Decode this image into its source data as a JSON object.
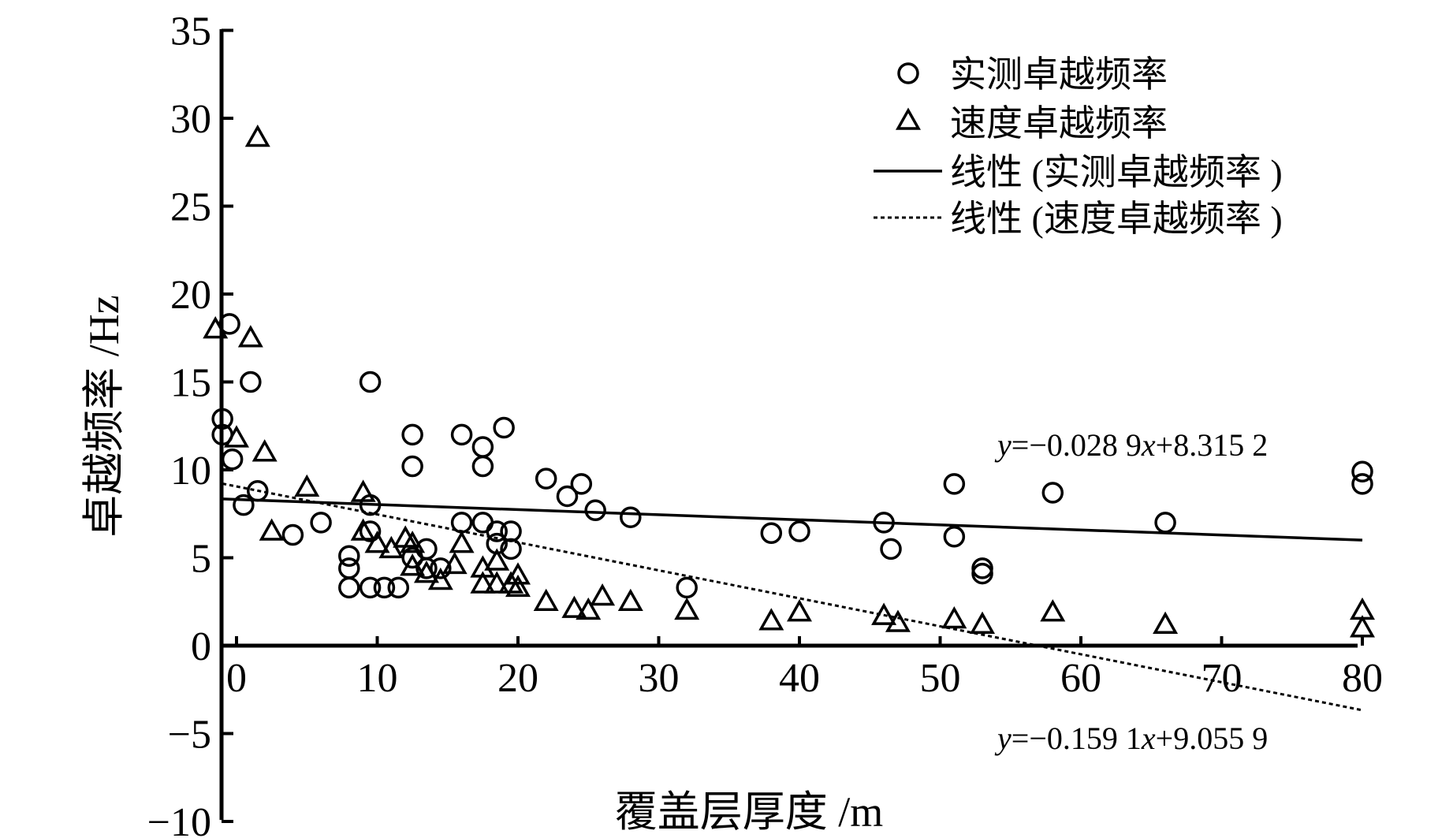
{
  "chart_data": {
    "type": "scatter",
    "title": "",
    "xlabel": "覆盖层厚度 /m",
    "ylabel": "卓越频率 /Hz",
    "xlim": [
      0,
      80
    ],
    "ylim": [
      -10,
      35
    ],
    "x_ticks": [
      "0",
      "10",
      "20",
      "30",
      "40",
      "50",
      "60",
      "70",
      "80"
    ],
    "y_ticks": [
      "−10",
      "−5",
      "0",
      "5",
      "10",
      "15",
      "20",
      "25",
      "30",
      "35"
    ],
    "legend_position": "top-right",
    "series": [
      {
        "name": "实测卓越频率",
        "marker": "circle",
        "points": [
          [
            -1,
            12.9
          ],
          [
            -1,
            12
          ],
          [
            -0.5,
            18.3
          ],
          [
            -0.3,
            10.6
          ],
          [
            0.5,
            8
          ],
          [
            1,
            15
          ],
          [
            1.5,
            8.8
          ],
          [
            4,
            6.3
          ],
          [
            6,
            7
          ],
          [
            8,
            5.1
          ],
          [
            8,
            4.4
          ],
          [
            8,
            3.3
          ],
          [
            9.5,
            15
          ],
          [
            9.5,
            8
          ],
          [
            9.5,
            6.5
          ],
          [
            9.5,
            3.3
          ],
          [
            10.5,
            3.3
          ],
          [
            11.5,
            3.3
          ],
          [
            12.5,
            12
          ],
          [
            12.5,
            10.2
          ],
          [
            12.5,
            5
          ],
          [
            13.5,
            5.5
          ],
          [
            13.5,
            4.4
          ],
          [
            14.5,
            4.4
          ],
          [
            16,
            12
          ],
          [
            16,
            7
          ],
          [
            17.5,
            11.3
          ],
          [
            17.5,
            10.2
          ],
          [
            17.5,
            7
          ],
          [
            18.5,
            6.5
          ],
          [
            18.5,
            5.8
          ],
          [
            19,
            12.4
          ],
          [
            19.5,
            6.5
          ],
          [
            19.5,
            5.5
          ],
          [
            22,
            9.5
          ],
          [
            23.5,
            8.5
          ],
          [
            24.5,
            9.2
          ],
          [
            25.5,
            7.7
          ],
          [
            28,
            7.3
          ],
          [
            32,
            3.3
          ],
          [
            38,
            6.4
          ],
          [
            40,
            6.5
          ],
          [
            46,
            7
          ],
          [
            46.5,
            5.5
          ],
          [
            51,
            9.2
          ],
          [
            51,
            6.2
          ],
          [
            53,
            4.1
          ],
          [
            53,
            4.4
          ],
          [
            58,
            8.7
          ],
          [
            66,
            7
          ],
          [
            80,
            9.9
          ],
          [
            80,
            9.2
          ]
        ]
      },
      {
        "name": "速度卓越频率",
        "marker": "triangle",
        "points": [
          [
            -1.5,
            18
          ],
          [
            0,
            11.8
          ],
          [
            1,
            17.5
          ],
          [
            1.5,
            28.9
          ],
          [
            2,
            11
          ],
          [
            2.5,
            6.5
          ],
          [
            5,
            9
          ],
          [
            9,
            8.7
          ],
          [
            9,
            6.5
          ],
          [
            10,
            5.8
          ],
          [
            11,
            5.5
          ],
          [
            12,
            6.1
          ],
          [
            12.5,
            5.8
          ],
          [
            12.5,
            4.5
          ],
          [
            13.5,
            4.1
          ],
          [
            14.5,
            3.7
          ],
          [
            15.5,
            4.6
          ],
          [
            16,
            5.8
          ],
          [
            17.5,
            4.4
          ],
          [
            17.5,
            3.5
          ],
          [
            18.5,
            3.5
          ],
          [
            18.5,
            4.8
          ],
          [
            19.5,
            3.5
          ],
          [
            20,
            3.3
          ],
          [
            20,
            4
          ],
          [
            22,
            2.5
          ],
          [
            24,
            2.1
          ],
          [
            25,
            2
          ],
          [
            26,
            2.8
          ],
          [
            28,
            2.5
          ],
          [
            32,
            2
          ],
          [
            38,
            1.4
          ],
          [
            40,
            1.9
          ],
          [
            46,
            1.7
          ],
          [
            47,
            1.3
          ],
          [
            51,
            1.5
          ],
          [
            53,
            1.2
          ],
          [
            58,
            1.9
          ],
          [
            66,
            1.2
          ],
          [
            80,
            2
          ],
          [
            80,
            1
          ]
        ]
      },
      {
        "name": "线性 (实测卓越频率 )",
        "line_style": "solid",
        "slope": -0.0289,
        "intercept": 8.3152,
        "x_range": [
          -1,
          80
        ]
      },
      {
        "name": "线性 (速度卓越频率 )",
        "line_style": "dotted",
        "slope": -0.1591,
        "intercept": 9.0559,
        "x_range": [
          -1,
          80
        ]
      }
    ],
    "annotations": {
      "eq1": {
        "y": "y",
        "eq": "=−0.028 9",
        "x": "x",
        "rest": "+8.315 2"
      },
      "eq2": {
        "y": "y",
        "eq": "=−0.159 1",
        "x": "x",
        "rest": "+9.055 9"
      }
    }
  }
}
